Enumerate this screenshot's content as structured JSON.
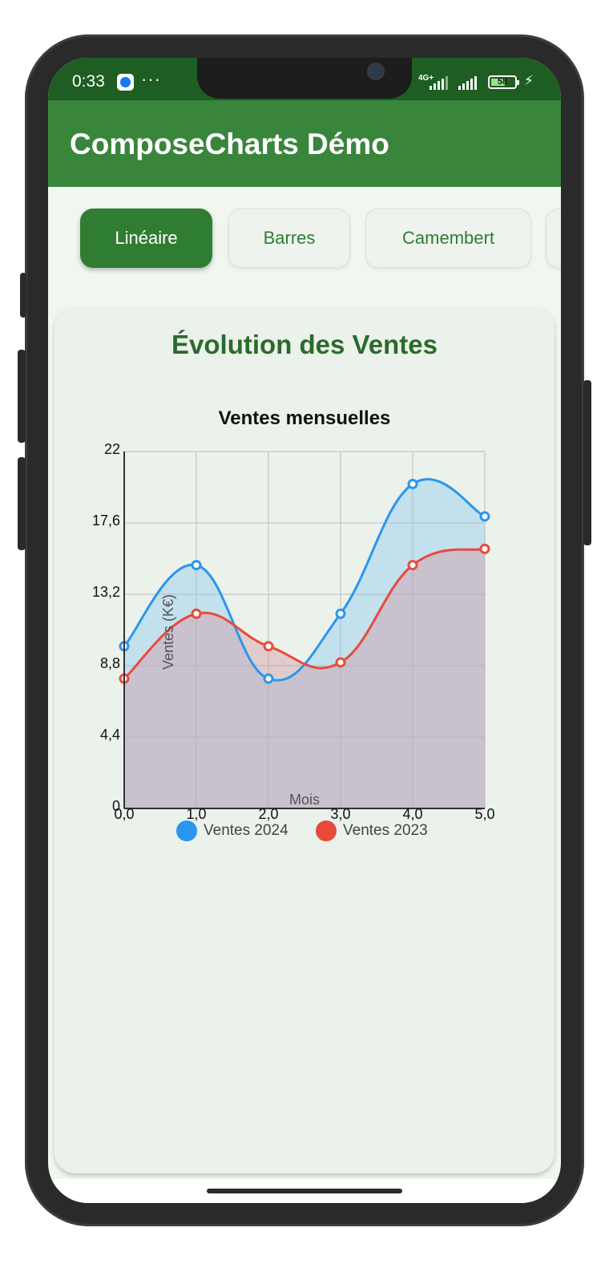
{
  "status_bar": {
    "time": "0:33",
    "more_icon": "···",
    "network": "4G+",
    "battery": "58",
    "icons": [
      "messenger-icon",
      "signal-icon",
      "battery-icon",
      "charging-icon"
    ]
  },
  "app": {
    "title": "ComposeCharts Démo"
  },
  "tabs": [
    {
      "label": "Linéaire",
      "active": true
    },
    {
      "label": "Barres",
      "active": false
    },
    {
      "label": "Camembert",
      "active": false
    }
  ],
  "card": {
    "title": "Évolution des Ventes"
  },
  "colors": {
    "primary": "#2f7d33",
    "series_2024": "#2a96ee",
    "series_2023": "#e84b3c"
  },
  "chart_data": {
    "type": "line",
    "title": "Ventes mensuelles",
    "xlabel": "Mois",
    "ylabel": "Ventes (K€)",
    "x": [
      0,
      1,
      2,
      3,
      4,
      5
    ],
    "x_tick_labels": [
      "0,0",
      "1,0",
      "2,0",
      "3,0",
      "4,0",
      "5,0"
    ],
    "y_tick_labels": [
      "0",
      "4,4",
      "8,8",
      "13,2",
      "17,6",
      "22"
    ],
    "y_ticks": [
      0,
      4.4,
      8.8,
      13.2,
      17.6,
      22
    ],
    "xlim": [
      0,
      5
    ],
    "ylim": [
      0,
      22
    ],
    "grid": true,
    "area_fill": true,
    "legend_position": "bottom",
    "series": [
      {
        "name": "Ventes 2024",
        "values": [
          10,
          15,
          8,
          12,
          20,
          18
        ],
        "color": "#2a96ee"
      },
      {
        "name": "Ventes 2023",
        "values": [
          8,
          12,
          10,
          9,
          15,
          16
        ],
        "color": "#e84b3c"
      }
    ]
  }
}
